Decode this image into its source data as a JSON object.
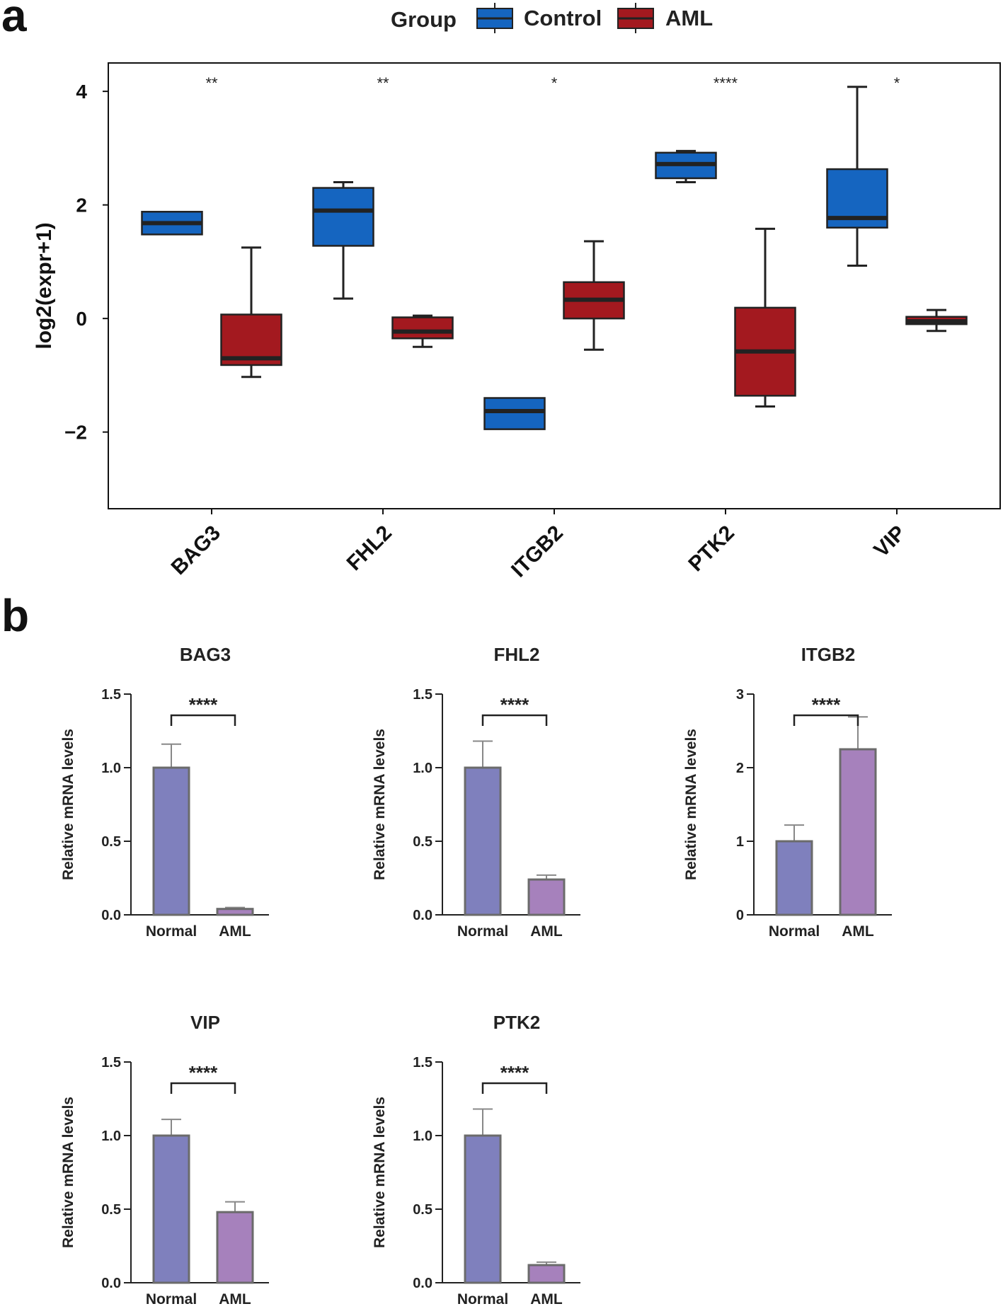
{
  "panels": {
    "a": "a",
    "b": "b"
  },
  "chart_data": [
    {
      "type": "box",
      "panel": "a",
      "legend": {
        "title": "Group",
        "entries": [
          {
            "name": "Control",
            "color": "#1565c0"
          },
          {
            "name": "AML",
            "color": "#a3191f"
          }
        ],
        "position": "top-center"
      },
      "ylabel": "log2(expr+1)",
      "yticks": [
        4,
        2,
        0,
        -2
      ],
      "ytick_labels": [
        "4",
        "2",
        "0",
        "−2"
      ],
      "ylim": [
        -3.35,
        4.5
      ],
      "categories": [
        "BAG3",
        "FHL2",
        "ITGB2",
        "PTK2",
        "VIP"
      ],
      "significance": [
        "**",
        "**",
        "*",
        "****",
        "*"
      ],
      "series": [
        {
          "name": "Control",
          "boxes": [
            {
              "min": 1.48,
              "q1": 1.48,
              "median": 1.68,
              "q3": 1.88,
              "max": 1.88
            },
            {
              "min": 0.35,
              "q1": 1.28,
              "median": 1.9,
              "q3": 2.3,
              "max": 2.4
            },
            {
              "min": -1.95,
              "q1": -1.95,
              "median": -1.63,
              "q3": -1.4,
              "max": -1.4
            },
            {
              "min": 2.4,
              "q1": 2.47,
              "median": 2.72,
              "q3": 2.92,
              "max": 2.95
            },
            {
              "min": 0.93,
              "q1": 1.6,
              "median": 1.77,
              "q3": 2.63,
              "max": 4.08
            }
          ]
        },
        {
          "name": "AML",
          "boxes": [
            {
              "min": -1.03,
              "q1": -0.82,
              "median": -0.7,
              "q3": 0.07,
              "max": 1.25
            },
            {
              "min": -0.5,
              "q1": -0.35,
              "median": -0.23,
              "q3": 0.02,
              "max": 0.05
            },
            {
              "min": -0.55,
              "q1": 0.0,
              "median": 0.33,
              "q3": 0.64,
              "max": 1.36
            },
            {
              "min": -1.55,
              "q1": -1.36,
              "median": -0.58,
              "q3": 0.19,
              "max": 1.58
            },
            {
              "min": -0.22,
              "q1": -0.1,
              "median": -0.05,
              "q3": 0.03,
              "max": 0.15
            }
          ]
        }
      ]
    },
    {
      "type": "bar",
      "panel": "b",
      "title": "BAG3",
      "categories": [
        "Normal",
        "AML"
      ],
      "values": [
        1.0,
        0.04
      ],
      "errors": [
        0.16,
        0.01
      ],
      "ylabel": "Relative mRNA levels",
      "ylim": [
        0,
        1.5
      ],
      "yticks": [
        "0.0",
        "0.5",
        "1.0",
        "1.5"
      ],
      "significance": "****"
    },
    {
      "type": "bar",
      "panel": "b",
      "title": "FHL2",
      "categories": [
        "Normal",
        "AML"
      ],
      "values": [
        1.0,
        0.24
      ],
      "errors": [
        0.18,
        0.03
      ],
      "ylabel": "Relative mRNA levels",
      "ylim": [
        0,
        1.5
      ],
      "yticks": [
        "0.0",
        "0.5",
        "1.0",
        "1.5"
      ],
      "significance": "****"
    },
    {
      "type": "bar",
      "panel": "b",
      "title": "ITGB2",
      "categories": [
        "Normal",
        "AML"
      ],
      "values": [
        1.0,
        2.25
      ],
      "errors": [
        0.22,
        0.44
      ],
      "ylabel": "Relative mRNA levels",
      "ylim": [
        0,
        3
      ],
      "yticks": [
        "0",
        "1",
        "2",
        "3"
      ],
      "significance": "****"
    },
    {
      "type": "bar",
      "panel": "b",
      "title": "VIP",
      "categories": [
        "Normal",
        "AML"
      ],
      "values": [
        1.0,
        0.48
      ],
      "errors": [
        0.11,
        0.07
      ],
      "ylabel": "Relative mRNA levels",
      "ylim": [
        0,
        1.5
      ],
      "yticks": [
        "0.0",
        "0.5",
        "1.0",
        "1.5"
      ],
      "significance": "****"
    },
    {
      "type": "bar",
      "panel": "b",
      "title": "PTK2",
      "categories": [
        "Normal",
        "AML"
      ],
      "values": [
        1.0,
        0.12
      ],
      "errors": [
        0.18,
        0.02
      ],
      "ylabel": "Relative mRNA levels",
      "ylim": [
        0,
        1.5
      ],
      "yticks": [
        "0.0",
        "0.5",
        "1.0",
        "1.5"
      ],
      "significance": "****"
    }
  ],
  "colors": {
    "normal_bar": "#7f80bd",
    "aml_bar": "#a681bc",
    "bar_outline": "#6b6b6b",
    "axis": "#111111"
  }
}
